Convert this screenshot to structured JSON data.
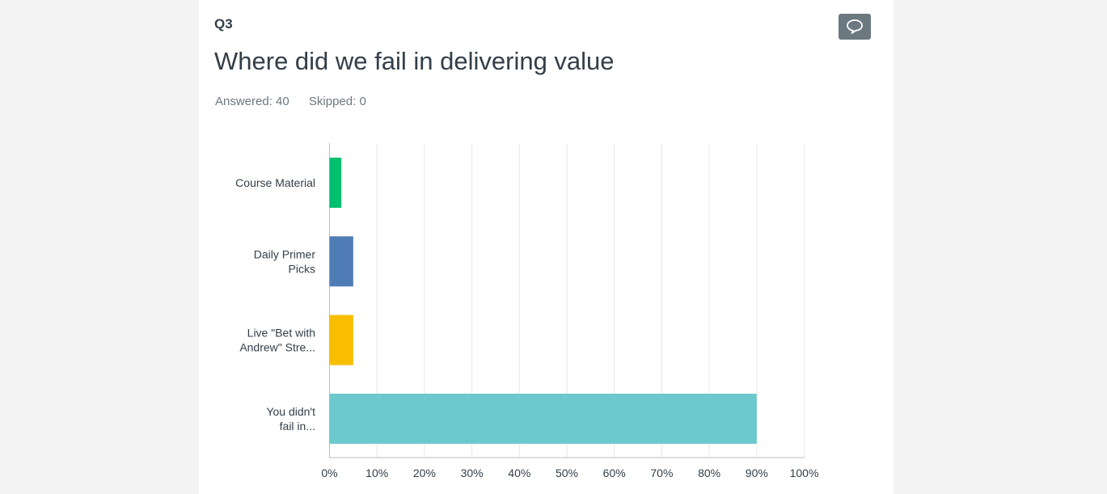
{
  "question": {
    "number": "Q3",
    "title": "Where did we fail in delivering value",
    "answered": "Answered: 40",
    "skipped": "Skipped: 0"
  },
  "comment_icon": "comment-bubble-icon",
  "colors": {
    "page_background": "#f3f4f3",
    "card_background": "#ffffff",
    "text": "#333e48",
    "muted_text": "#6b787f"
  },
  "chart_data": {
    "type": "bar",
    "orientation": "horizontal",
    "categories": [
      [
        "Course Material"
      ],
      [
        "Daily Primer",
        "Picks"
      ],
      [
        "Live \"Bet with",
        "Andrew\" Stre..."
      ],
      [
        "You didn't",
        "fail in..."
      ]
    ],
    "values": [
      2.5,
      5,
      5,
      90
    ],
    "colors": [
      "#00bf6f",
      "#507cb6",
      "#f9be00",
      "#6bc8cd"
    ],
    "xlim": [
      0,
      100
    ],
    "xticks": [
      "0%",
      "10%",
      "20%",
      "30%",
      "40%",
      "50%",
      "60%",
      "70%",
      "80%",
      "90%",
      "100%"
    ],
    "unit": "%",
    "grid": true,
    "title": "",
    "xlabel": "",
    "ylabel": ""
  }
}
